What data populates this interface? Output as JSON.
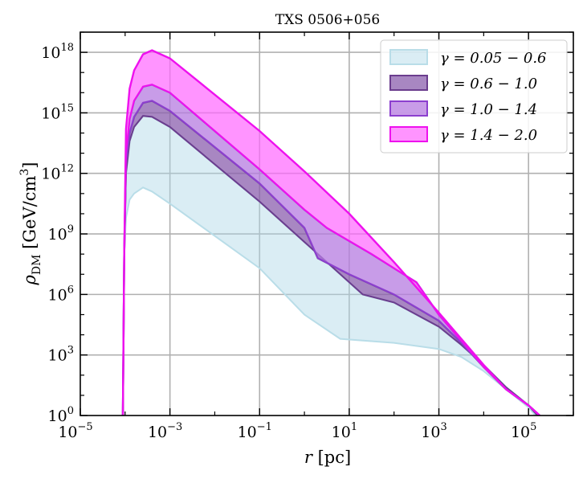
{
  "chart_data": {
    "type": "area",
    "title": "TXS 0506+056",
    "xlabel": "r [pc]",
    "ylabel": "ρDM [GeV/cm3]",
    "xscale": "log",
    "yscale": "log",
    "xlim_log10": [
      -5,
      6.0
    ],
    "ylim_log10": [
      0,
      19.0
    ],
    "x_ticks": [
      {
        "base": "10",
        "exp": "−5",
        "log10": -5
      },
      {
        "base": "10",
        "exp": "−3",
        "log10": -3
      },
      {
        "base": "10",
        "exp": "−1",
        "log10": -1
      },
      {
        "base": "10",
        "exp": "1",
        "log10": 1
      },
      {
        "base": "10",
        "exp": "3",
        "log10": 3
      },
      {
        "base": "10",
        "exp": "5",
        "log10": 5
      }
    ],
    "y_ticks": [
      {
        "base": "10",
        "exp": "0",
        "log10": 0
      },
      {
        "base": "10",
        "exp": "3",
        "log10": 3
      },
      {
        "base": "10",
        "exp": "6",
        "log10": 6
      },
      {
        "base": "10",
        "exp": "9",
        "log10": 9
      },
      {
        "base": "10",
        "exp": "12",
        "log10": 12
      },
      {
        "base": "10",
        "exp": "15",
        "log10": 15
      },
      {
        "base": "10",
        "exp": "18",
        "log10": 18
      }
    ],
    "grid": true,
    "legend_position": "top-right",
    "series": [
      {
        "name": "γ = 0.05 − 0.6",
        "color": "#add8e6",
        "lower_log10": [
          [
            -4.05,
            0
          ],
          [
            -4.02,
            8
          ],
          [
            -3.98,
            9.8
          ],
          [
            -3.9,
            10.7
          ],
          [
            -3.8,
            11.0
          ],
          [
            -3.6,
            11.3
          ],
          [
            -3.4,
            11.1
          ],
          [
            -3.0,
            10.5
          ],
          [
            -1.0,
            7.3
          ],
          [
            0.0,
            5.0
          ],
          [
            0.8,
            3.8
          ],
          [
            2.0,
            3.6
          ],
          [
            3.0,
            3.3
          ],
          [
            3.5,
            2.9
          ],
          [
            4.0,
            2.2
          ],
          [
            4.5,
            1.3
          ],
          [
            5.0,
            0.4
          ],
          [
            5.15,
            0
          ]
        ],
        "upper_log10": [
          [
            -4.05,
            0
          ],
          [
            -4.02,
            8
          ],
          [
            -3.98,
            12.0
          ],
          [
            -3.9,
            13.6
          ],
          [
            -3.8,
            14.3
          ],
          [
            -3.6,
            14.85
          ],
          [
            -3.4,
            14.8
          ],
          [
            -3.0,
            14.3
          ],
          [
            -1.0,
            10.6
          ],
          [
            0.0,
            8.6
          ],
          [
            1.3,
            6.0
          ],
          [
            2.0,
            5.6
          ],
          [
            3.0,
            4.4
          ],
          [
            3.5,
            3.5
          ],
          [
            4.0,
            2.5
          ],
          [
            4.5,
            1.4
          ],
          [
            5.0,
            0.5
          ],
          [
            5.2,
            0
          ]
        ]
      },
      {
        "name": "γ = 0.6 − 1.0",
        "color": "#8b5fad",
        "lower_log10": [
          [
            -4.05,
            0
          ],
          [
            -4.02,
            8
          ],
          [
            -3.98,
            12.0
          ],
          [
            -3.9,
            13.6
          ],
          [
            -3.8,
            14.3
          ],
          [
            -3.6,
            14.85
          ],
          [
            -3.4,
            14.8
          ],
          [
            -3.0,
            14.3
          ],
          [
            -1.0,
            10.6
          ],
          [
            0.0,
            8.6
          ],
          [
            1.3,
            6.0
          ],
          [
            2.0,
            5.6
          ],
          [
            3.0,
            4.4
          ],
          [
            3.5,
            3.5
          ],
          [
            4.0,
            2.5
          ],
          [
            4.5,
            1.4
          ],
          [
            5.0,
            0.5
          ],
          [
            5.2,
            0
          ]
        ],
        "upper_log10": [
          [
            -4.05,
            0
          ],
          [
            -4.02,
            8
          ],
          [
            -3.98,
            12.5
          ],
          [
            -3.9,
            14.0
          ],
          [
            -3.8,
            14.8
          ],
          [
            -3.6,
            15.5
          ],
          [
            -3.4,
            15.6
          ],
          [
            -3.0,
            15.1
          ],
          [
            -1.0,
            11.5
          ],
          [
            0.0,
            9.3
          ],
          [
            0.3,
            7.8
          ],
          [
            1.0,
            7.0
          ],
          [
            2.0,
            6.0
          ],
          [
            3.0,
            4.7
          ],
          [
            3.5,
            3.6
          ],
          [
            4.0,
            2.4
          ],
          [
            4.5,
            1.3
          ],
          [
            5.0,
            0.5
          ],
          [
            5.25,
            0
          ]
        ]
      },
      {
        "name": "γ = 1.0 − 1.4",
        "color": "#b57be0",
        "lower_log10": [
          [
            -4.05,
            0
          ],
          [
            -4.02,
            8
          ],
          [
            -3.98,
            12.5
          ],
          [
            -3.9,
            14.0
          ],
          [
            -3.8,
            14.8
          ],
          [
            -3.6,
            15.5
          ],
          [
            -3.4,
            15.6
          ],
          [
            -3.0,
            15.1
          ],
          [
            -1.0,
            11.5
          ],
          [
            0.0,
            9.3
          ],
          [
            0.3,
            7.8
          ],
          [
            1.0,
            7.0
          ],
          [
            2.0,
            6.0
          ],
          [
            3.0,
            4.7
          ],
          [
            3.5,
            3.6
          ],
          [
            4.0,
            2.4
          ],
          [
            4.5,
            1.3
          ],
          [
            5.0,
            0.5
          ],
          [
            5.25,
            0
          ]
        ],
        "upper_log10": [
          [
            -4.05,
            0
          ],
          [
            -4.02,
            8
          ],
          [
            -3.98,
            13.0
          ],
          [
            -3.9,
            14.7
          ],
          [
            -3.8,
            15.6
          ],
          [
            -3.6,
            16.3
          ],
          [
            -3.4,
            16.4
          ],
          [
            -3.0,
            16.0
          ],
          [
            -1.0,
            12.2
          ],
          [
            0.0,
            10.2
          ],
          [
            0.5,
            9.3
          ],
          [
            1.5,
            8.0
          ],
          [
            2.5,
            6.6
          ],
          [
            3.0,
            5.0
          ],
          [
            3.5,
            3.7
          ],
          [
            4.0,
            2.4
          ],
          [
            4.5,
            1.3
          ],
          [
            5.0,
            0.5
          ],
          [
            5.25,
            0
          ]
        ]
      },
      {
        "name": "γ = 1.4 − 2.0",
        "color": "#ff66ff",
        "lower_log10": [
          [
            -4.05,
            0
          ],
          [
            -4.02,
            8
          ],
          [
            -3.98,
            13.0
          ],
          [
            -3.9,
            14.7
          ],
          [
            -3.8,
            15.6
          ],
          [
            -3.6,
            16.3
          ],
          [
            -3.4,
            16.4
          ],
          [
            -3.0,
            16.0
          ],
          [
            -1.0,
            12.2
          ],
          [
            0.0,
            10.2
          ],
          [
            0.5,
            9.3
          ],
          [
            1.5,
            8.0
          ],
          [
            2.5,
            6.6
          ],
          [
            3.0,
            5.0
          ],
          [
            3.5,
            3.7
          ],
          [
            4.0,
            2.4
          ],
          [
            4.5,
            1.3
          ],
          [
            5.0,
            0.5
          ],
          [
            5.25,
            0
          ]
        ],
        "upper_log10": [
          [
            -4.05,
            0
          ],
          [
            -4.02,
            8
          ],
          [
            -3.98,
            14.2
          ],
          [
            -3.9,
            16.2
          ],
          [
            -3.8,
            17.1
          ],
          [
            -3.6,
            17.9
          ],
          [
            -3.4,
            18.1
          ],
          [
            -3.0,
            17.7
          ],
          [
            -1.0,
            14.1
          ],
          [
            0.0,
            12.1
          ],
          [
            1.0,
            10.0
          ],
          [
            2.0,
            7.6
          ],
          [
            3.0,
            5.1
          ],
          [
            3.5,
            3.8
          ],
          [
            4.0,
            2.5
          ],
          [
            4.5,
            1.3
          ],
          [
            5.0,
            0.5
          ],
          [
            5.25,
            0
          ]
        ]
      }
    ]
  }
}
